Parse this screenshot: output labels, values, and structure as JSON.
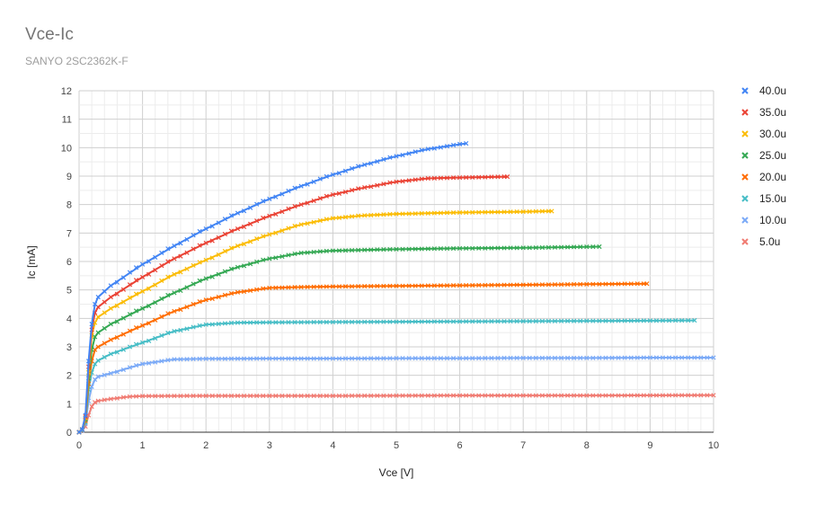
{
  "chart_data": {
    "type": "line",
    "title": "Vce-Ic",
    "subtitle": "SANYO 2SC2362K-F",
    "xlabel": "Vce [V]",
    "ylabel": "Ic [mA]",
    "xlim": [
      0,
      10
    ],
    "ylim": [
      0,
      12
    ],
    "xticks": [
      0,
      1,
      2,
      3,
      4,
      5,
      6,
      7,
      8,
      9,
      10
    ],
    "yticks": [
      0,
      1,
      2,
      3,
      4,
      5,
      6,
      7,
      8,
      9,
      10,
      11,
      12
    ],
    "grid": true,
    "legend_position": "right",
    "marker": "x",
    "series": [
      {
        "name": "40.0u",
        "color": "#4285f4",
        "vmax": 6.1,
        "points": [
          [
            0,
            0
          ],
          [
            0.05,
            0.1
          ],
          [
            0.1,
            0.6
          ],
          [
            0.15,
            2.5
          ],
          [
            0.2,
            3.8
          ],
          [
            0.25,
            4.5
          ],
          [
            0.3,
            4.75
          ],
          [
            0.5,
            5.15
          ],
          [
            1,
            5.9
          ],
          [
            1.5,
            6.55
          ],
          [
            2,
            7.15
          ],
          [
            2.5,
            7.7
          ],
          [
            3,
            8.2
          ],
          [
            3.5,
            8.65
          ],
          [
            4,
            9.05
          ],
          [
            4.5,
            9.4
          ],
          [
            5,
            9.7
          ],
          [
            5.5,
            9.95
          ],
          [
            6.1,
            10.15
          ]
        ]
      },
      {
        "name": "35.0u",
        "color": "#ea4335",
        "vmax": 6.75,
        "points": [
          [
            0,
            0
          ],
          [
            0.05,
            0.1
          ],
          [
            0.1,
            0.55
          ],
          [
            0.15,
            2.3
          ],
          [
            0.2,
            3.6
          ],
          [
            0.25,
            4.2
          ],
          [
            0.3,
            4.4
          ],
          [
            0.5,
            4.75
          ],
          [
            1,
            5.45
          ],
          [
            1.5,
            6.1
          ],
          [
            2,
            6.65
          ],
          [
            2.5,
            7.15
          ],
          [
            3,
            7.6
          ],
          [
            3.5,
            8.0
          ],
          [
            4,
            8.35
          ],
          [
            4.5,
            8.6
          ],
          [
            5,
            8.8
          ],
          [
            5.5,
            8.92
          ],
          [
            6,
            8.95
          ],
          [
            6.75,
            8.98
          ]
        ]
      },
      {
        "name": "30.0u",
        "color": "#fbbc04",
        "vmax": 7.45,
        "points": [
          [
            0,
            0
          ],
          [
            0.05,
            0.1
          ],
          [
            0.1,
            0.5
          ],
          [
            0.15,
            2.1
          ],
          [
            0.2,
            3.4
          ],
          [
            0.25,
            3.85
          ],
          [
            0.3,
            4.05
          ],
          [
            0.5,
            4.35
          ],
          [
            1,
            4.95
          ],
          [
            1.5,
            5.55
          ],
          [
            2,
            6.05
          ],
          [
            2.5,
            6.55
          ],
          [
            3,
            6.95
          ],
          [
            3.5,
            7.3
          ],
          [
            4,
            7.52
          ],
          [
            4.5,
            7.62
          ],
          [
            5,
            7.67
          ],
          [
            6,
            7.72
          ],
          [
            7,
            7.75
          ],
          [
            7.45,
            7.77
          ]
        ]
      },
      {
        "name": "25.0u",
        "color": "#34a853",
        "vmax": 8.2,
        "points": [
          [
            0,
            0
          ],
          [
            0.05,
            0.1
          ],
          [
            0.1,
            0.45
          ],
          [
            0.15,
            1.9
          ],
          [
            0.2,
            2.9
          ],
          [
            0.25,
            3.35
          ],
          [
            0.3,
            3.5
          ],
          [
            0.5,
            3.8
          ],
          [
            1,
            4.35
          ],
          [
            1.5,
            4.9
          ],
          [
            2,
            5.4
          ],
          [
            2.5,
            5.8
          ],
          [
            3,
            6.1
          ],
          [
            3.5,
            6.3
          ],
          [
            4,
            6.38
          ],
          [
            5,
            6.43
          ],
          [
            6,
            6.46
          ],
          [
            7,
            6.48
          ],
          [
            8.2,
            6.52
          ]
        ]
      },
      {
        "name": "20.0u",
        "color": "#ff6d01",
        "vmax": 8.95,
        "points": [
          [
            0,
            0
          ],
          [
            0.05,
            0.1
          ],
          [
            0.1,
            0.4
          ],
          [
            0.15,
            1.7
          ],
          [
            0.2,
            2.5
          ],
          [
            0.25,
            2.9
          ],
          [
            0.3,
            3.0
          ],
          [
            0.5,
            3.25
          ],
          [
            1,
            3.75
          ],
          [
            1.5,
            4.25
          ],
          [
            2,
            4.65
          ],
          [
            2.5,
            4.92
          ],
          [
            3,
            5.07
          ],
          [
            3.5,
            5.1
          ],
          [
            4,
            5.12
          ],
          [
            5,
            5.14
          ],
          [
            6,
            5.16
          ],
          [
            7,
            5.18
          ],
          [
            8,
            5.2
          ],
          [
            8.95,
            5.22
          ]
        ]
      },
      {
        "name": "15.0u",
        "color": "#46bdc6",
        "vmax": 9.7,
        "points": [
          [
            0,
            0
          ],
          [
            0.05,
            0.08
          ],
          [
            0.1,
            0.35
          ],
          [
            0.15,
            1.5
          ],
          [
            0.2,
            2.1
          ],
          [
            0.25,
            2.4
          ],
          [
            0.3,
            2.52
          ],
          [
            0.5,
            2.75
          ],
          [
            1,
            3.15
          ],
          [
            1.5,
            3.55
          ],
          [
            2,
            3.78
          ],
          [
            2.5,
            3.85
          ],
          [
            3,
            3.86
          ],
          [
            4,
            3.87
          ],
          [
            5,
            3.88
          ],
          [
            6,
            3.89
          ],
          [
            7,
            3.9
          ],
          [
            8,
            3.91
          ],
          [
            9,
            3.92
          ],
          [
            9.7,
            3.93
          ]
        ]
      },
      {
        "name": "10.0u",
        "color": "#7baaf7",
        "vmax": 10,
        "points": [
          [
            0,
            0
          ],
          [
            0.05,
            0.06
          ],
          [
            0.1,
            0.3
          ],
          [
            0.15,
            1.1
          ],
          [
            0.2,
            1.6
          ],
          [
            0.25,
            1.85
          ],
          [
            0.3,
            1.95
          ],
          [
            0.5,
            2.07
          ],
          [
            1,
            2.4
          ],
          [
            1.5,
            2.56
          ],
          [
            2,
            2.58
          ],
          [
            3,
            2.59
          ],
          [
            4,
            2.59
          ],
          [
            5,
            2.6
          ],
          [
            6,
            2.6
          ],
          [
            7,
            2.61
          ],
          [
            8,
            2.61
          ],
          [
            9,
            2.62
          ],
          [
            10,
            2.62
          ]
        ]
      },
      {
        "name": "5.0u",
        "color": "#f07b72",
        "vmax": 10,
        "points": [
          [
            0,
            0
          ],
          [
            0.05,
            0.05
          ],
          [
            0.1,
            0.2
          ],
          [
            0.15,
            0.6
          ],
          [
            0.2,
            0.9
          ],
          [
            0.25,
            1.05
          ],
          [
            0.3,
            1.1
          ],
          [
            0.5,
            1.17
          ],
          [
            0.8,
            1.25
          ],
          [
            1,
            1.27
          ],
          [
            2,
            1.28
          ],
          [
            4,
            1.28
          ],
          [
            6,
            1.29
          ],
          [
            8,
            1.29
          ],
          [
            10,
            1.3
          ]
        ]
      }
    ]
  }
}
